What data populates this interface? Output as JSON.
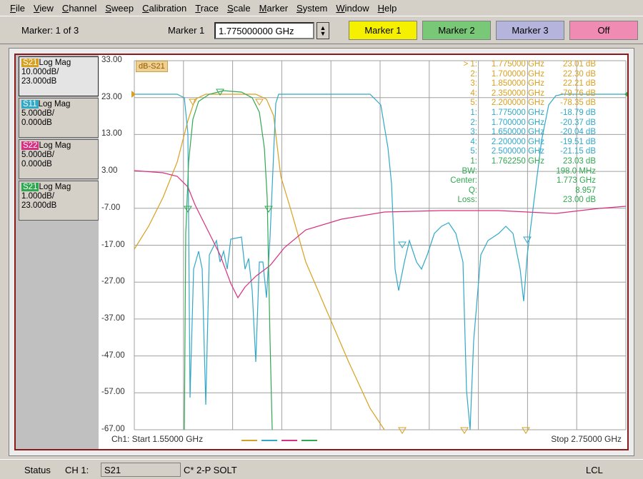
{
  "menu": [
    "File",
    "View",
    "Channel",
    "Sweep",
    "Calibration",
    "Trace",
    "Scale",
    "Marker",
    "System",
    "Window",
    "Help"
  ],
  "toolbar": {
    "marker_count": "Marker: 1 of 3",
    "marker_select_label": "Marker 1",
    "marker_freq_value": "1.775000000 GHz",
    "buttons": [
      {
        "label": "Marker 1",
        "color": "#f5f000"
      },
      {
        "label": "Marker 2",
        "color": "#78c878"
      },
      {
        "label": "Marker 3",
        "color": "#b4b4dc"
      },
      {
        "label": "Off",
        "color": "#f08cb4"
      }
    ]
  },
  "traces": [
    {
      "name": "S21",
      "format": "Log Mag",
      "scale": "10.000dB/",
      "ref": "23.000dB",
      "color": "#d8a020"
    },
    {
      "name": "S11",
      "format": "Log Mag",
      "scale": "5.000dB/",
      "ref": "0.000dB",
      "color": "#30a8c8"
    },
    {
      "name": "S22",
      "format": "Log Mag",
      "scale": "5.000dB/",
      "ref": "0.000dB",
      "color": "#d83080"
    },
    {
      "name": "S21",
      "format": "Log Mag",
      "scale": "1.000dB/",
      "ref": "23.000dB",
      "color": "#30a850"
    }
  ],
  "plot": {
    "trace_title": "dB-S21",
    "y_ticks": [
      "33.00",
      "23.00",
      "13.00",
      "3.00",
      "-7.00",
      "-17.00",
      "-27.00",
      "-37.00",
      "-47.00",
      "-57.00",
      "-67.00"
    ],
    "start_label": "Ch1: Start  1.55000 GHz",
    "stop_label": "Stop  2.75000 GHz",
    "marker_table": [
      {
        "id": "> 1:",
        "freq": "1.775000 GHz",
        "val": "23.01 dB",
        "color": "#d8a020"
      },
      {
        "id": "2:",
        "freq": "1.700000 GHz",
        "val": "22.30 dB",
        "color": "#d8a020"
      },
      {
        "id": "3:",
        "freq": "1.850000 GHz",
        "val": "22.21 dB",
        "color": "#d8a020"
      },
      {
        "id": "4:",
        "freq": "2.350000 GHz",
        "val": "-79.76 dB",
        "color": "#d8a020"
      },
      {
        "id": "5:",
        "freq": "2.200000 GHz",
        "val": "-78.35 dB",
        "color": "#d8a020"
      },
      {
        "id": "1:",
        "freq": "1.775000 GHz",
        "val": "-18.79 dB",
        "color": "#30a8c8"
      },
      {
        "id": "2:",
        "freq": "1.700000 GHz",
        "val": "-20.37 dB",
        "color": "#30a8c8"
      },
      {
        "id": "3:",
        "freq": "1.650000 GHz",
        "val": "-20.04 dB",
        "color": "#30a8c8"
      },
      {
        "id": "4:",
        "freq": "2.200000 GHz",
        "val": "-19.51 dB",
        "color": "#30a8c8"
      },
      {
        "id": "5:",
        "freq": "2.500000 GHz",
        "val": "-21.15 dB",
        "color": "#30a8c8"
      },
      {
        "id": "1:",
        "freq": "1.762250 GHz",
        "val": "23.03 dB",
        "color": "#30a850"
      },
      {
        "id": "BW:",
        "freq": "",
        "val": "198.0 MHz",
        "color": "#30a850"
      },
      {
        "id": "Center:",
        "freq": "",
        "val": "1.773 GHz",
        "color": "#30a850"
      },
      {
        "id": "Q:",
        "freq": "",
        "val": "8.957",
        "color": "#30a850"
      },
      {
        "id": "Loss:",
        "freq": "",
        "val": "23.00 dB",
        "color": "#30a850"
      }
    ]
  },
  "status": {
    "label": "Status",
    "channel": "CH 1:",
    "trace": "S21",
    "cal": "C* 2-P SOLT",
    "lcl": "LCL"
  }
}
